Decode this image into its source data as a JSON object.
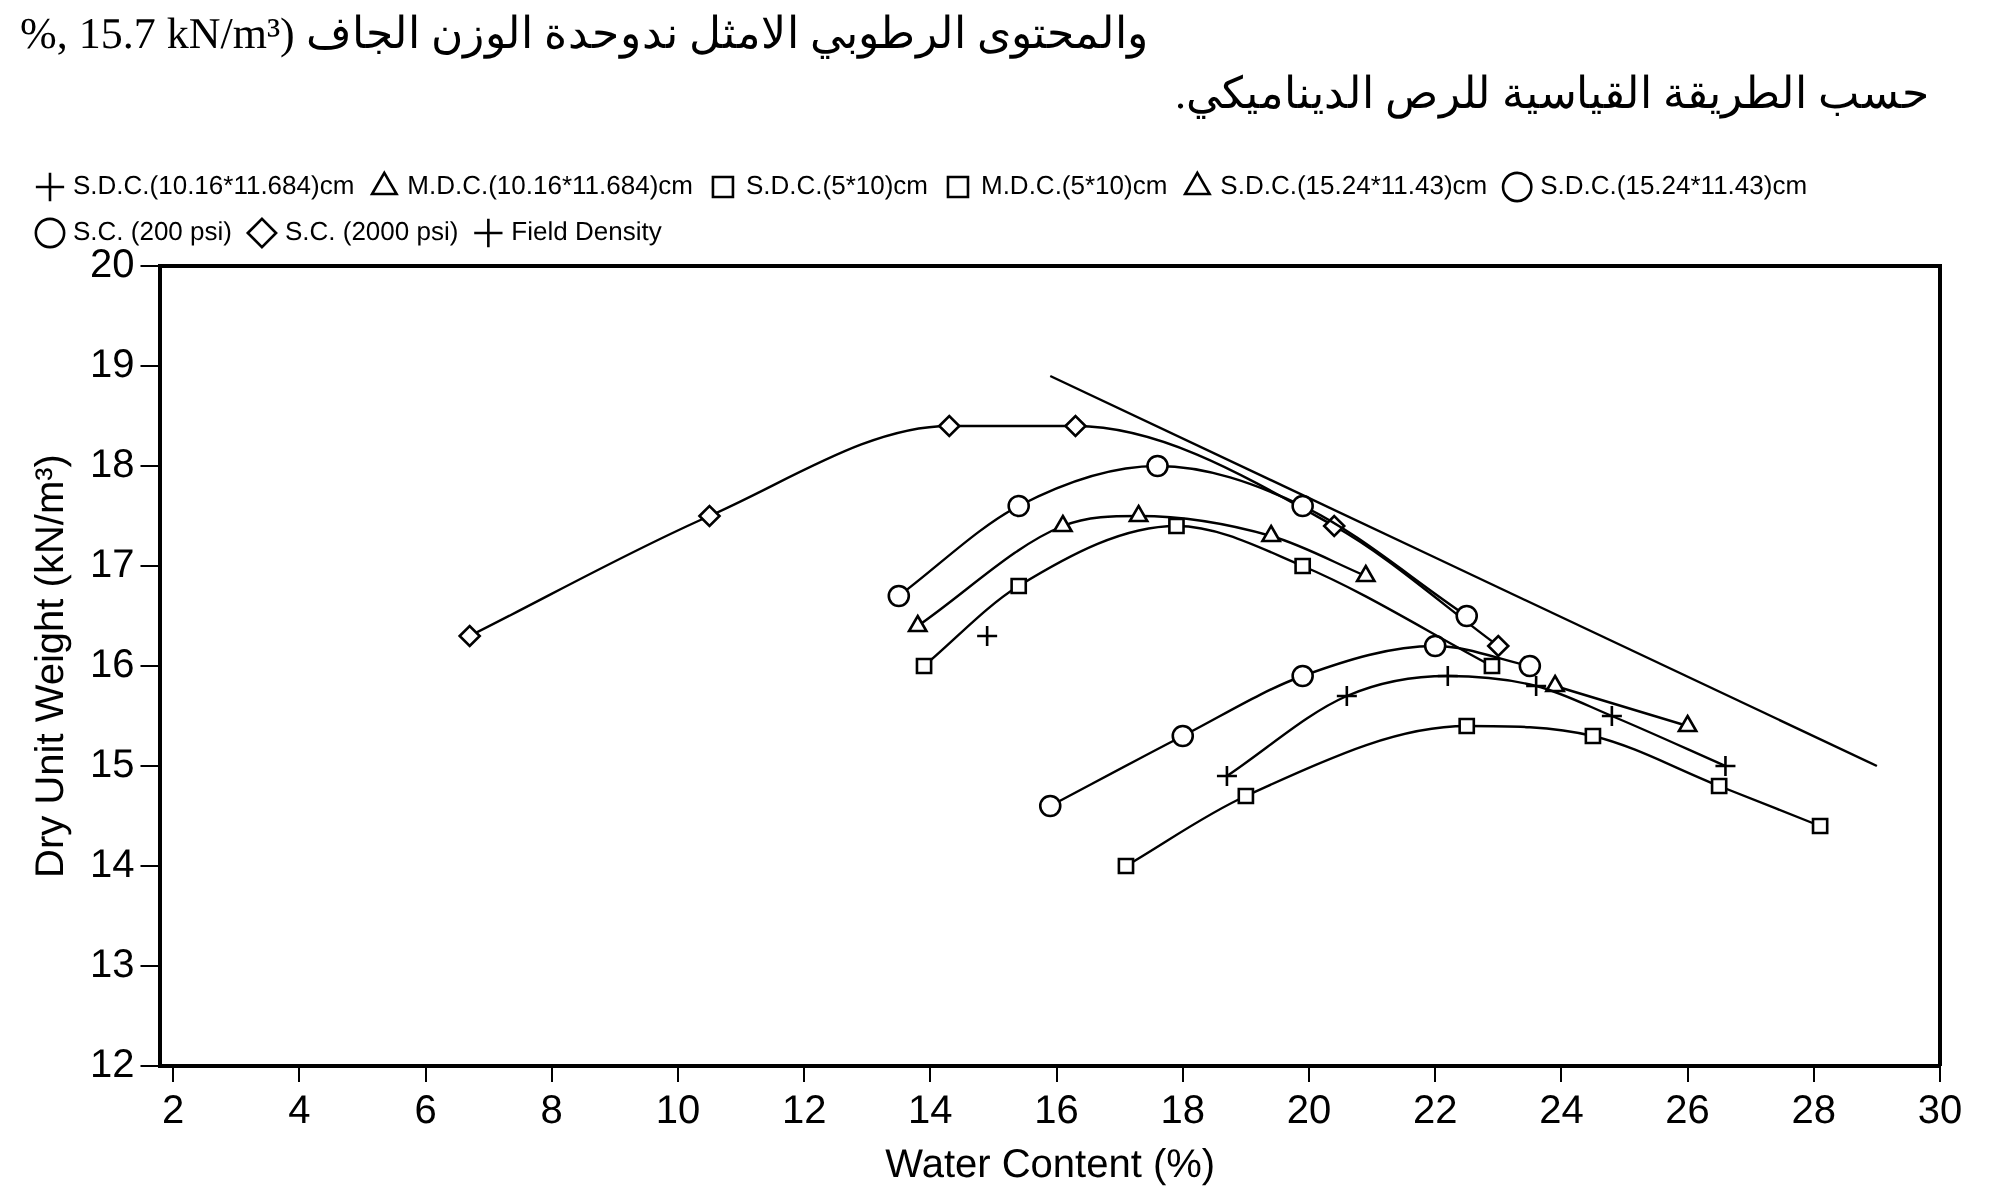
{
  "chart_data": {
    "type": "line",
    "xlabel": "Water Content (%)",
    "ylabel": "Dry Unit Weight (kN/m³)",
    "annotations": [
      "%, 15.7 kN/m³) والمحتوى الرطوبي الامثل ندوحدة الوزن الجاف",
      "حسب الطريقة القياسية للرص الديناميكي."
    ],
    "xlim": [
      1.8,
      30
    ],
    "xticks": [
      2,
      4,
      6,
      8,
      10,
      12,
      14,
      16,
      18,
      20,
      22,
      24,
      26,
      28,
      30
    ],
    "ylim": [
      12,
      20
    ],
    "yticks": [
      12,
      13,
      14,
      15,
      16,
      17,
      18,
      19,
      20
    ],
    "grid": false,
    "legend": "top",
    "line_style": "solid",
    "series": [
      {
        "name": "S.D.C.(10.16*11.684)cm",
        "color": "#000000",
        "marker": "cross",
        "x": [
          18.7,
          20.6,
          22.2,
          23.6,
          24.8,
          26.6
        ],
        "values": [
          14.9,
          15.7,
          15.9,
          15.8,
          15.5,
          15.0
        ]
      },
      {
        "name": "M.D.C.(10.16*11.684)cm",
        "color": "#000000",
        "marker": "triangle",
        "x": [
          13.8,
          16.1,
          17.3,
          19.4,
          20.9
        ],
        "values": [
          16.4,
          17.4,
          17.5,
          17.3,
          16.9
        ]
      },
      {
        "name": "S.D.C.(5*10)cm",
        "color": "#000000",
        "marker": "square",
        "x": [
          17.1,
          19.0,
          22.5,
          24.5,
          26.5,
          28.1
        ],
        "values": [
          14.0,
          14.7,
          15.4,
          15.3,
          14.8,
          14.4
        ]
      },
      {
        "name": "M.D.C.(5*10)cm",
        "color": "#000000",
        "marker": "square",
        "x": [
          13.9,
          15.4,
          17.9,
          19.9,
          22.9
        ],
        "values": [
          16.0,
          16.8,
          17.4,
          17.0,
          16.0
        ]
      },
      {
        "name": "S.D.C.(15.24*11.43)cm",
        "color": "#000000",
        "marker": "triangle",
        "x": [
          23.9,
          26.0
        ],
        "values": [
          15.8,
          15.4
        ]
      },
      {
        "name": "S.D.C.(15.24*11.43)cm",
        "color": "#000000",
        "marker": "circle",
        "x": [
          13.5,
          15.4,
          17.6,
          19.9,
          22.5
        ],
        "values": [
          16.7,
          17.6,
          18.0,
          17.6,
          16.5
        ]
      },
      {
        "name": "S.C. (200 psi)",
        "color": "#000000",
        "marker": "circle",
        "x": [
          15.9,
          18.0,
          19.9,
          22.0,
          23.5
        ],
        "values": [
          14.6,
          15.3,
          15.9,
          16.2,
          16.0
        ]
      },
      {
        "name": "S.C. (2000 psi)",
        "color": "#000000",
        "marker": "diamond",
        "x": [
          6.7,
          10.5,
          14.3,
          16.3,
          20.4,
          23.0
        ],
        "values": [
          16.3,
          17.5,
          18.4,
          18.4,
          17.4,
          16.2
        ]
      },
      {
        "name": "Field Density",
        "color": "#000000",
        "marker": "cross",
        "x": [
          14.9
        ],
        "values": [
          16.3
        ]
      },
      {
        "color": "#000000",
        "marker": "none",
        "x": [
          15.9,
          29.0
        ],
        "values": [
          18.9,
          15.0
        ]
      }
    ]
  }
}
